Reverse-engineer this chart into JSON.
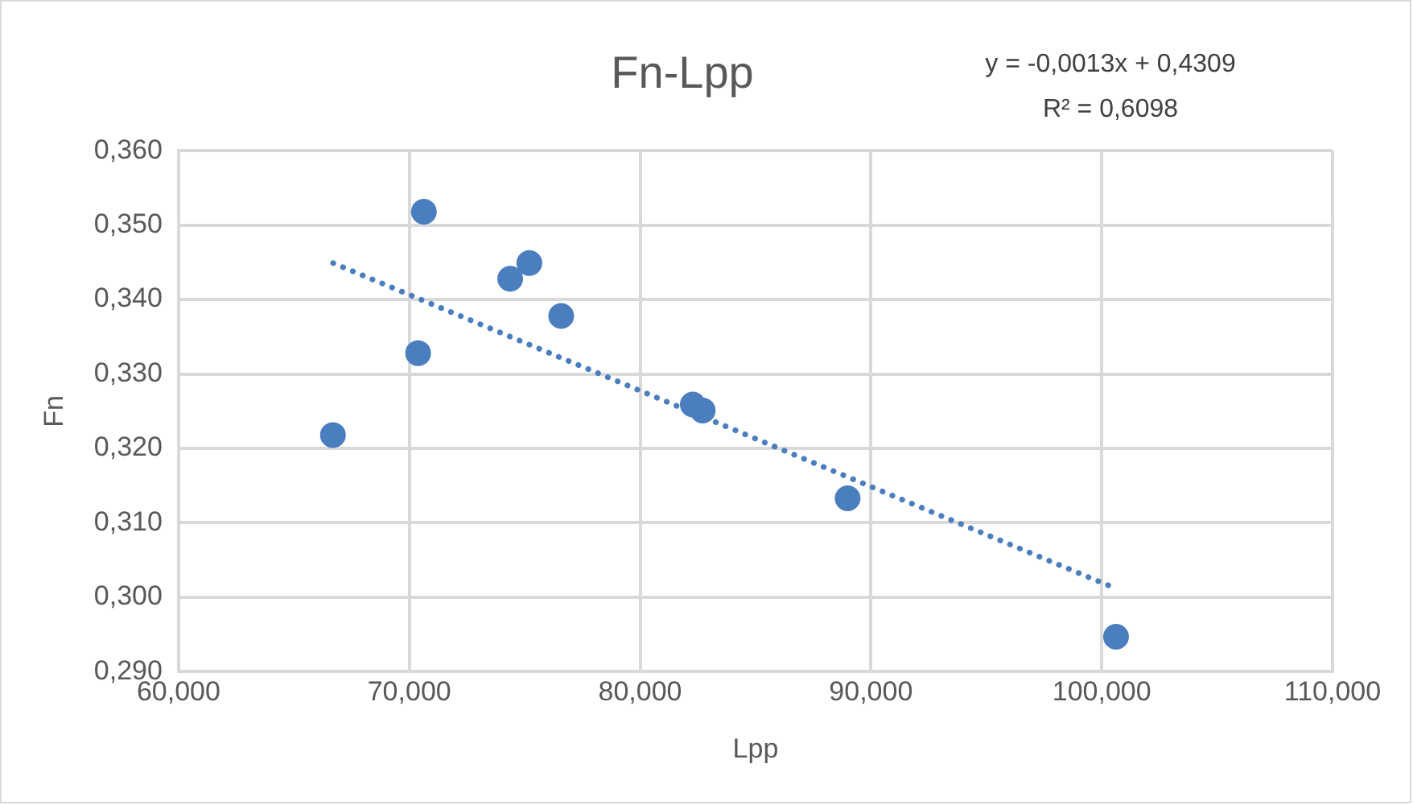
{
  "chart_data": {
    "type": "scatter",
    "title": "Fn-Lpp",
    "xlabel": "Lpp",
    "ylabel": "Fn",
    "annotations": [
      "y = -0,0013x + 0,4309",
      "R² = 0,6098"
    ],
    "xlim": [
      60,
      110
    ],
    "xticks": [
      {
        "value": 60,
        "label": "60,000"
      },
      {
        "value": 70,
        "label": "70,000"
      },
      {
        "value": 80,
        "label": "80,000"
      },
      {
        "value": 90,
        "label": "90,000"
      },
      {
        "value": 100,
        "label": "100,000"
      },
      {
        "value": 110,
        "label": "110,000"
      }
    ],
    "ylim": [
      0.29,
      0.36
    ],
    "yticks": [
      {
        "value": 0.29,
        "label": "0,290"
      },
      {
        "value": 0.3,
        "label": "0,300"
      },
      {
        "value": 0.31,
        "label": "0,310"
      },
      {
        "value": 0.32,
        "label": "0,320"
      },
      {
        "value": 0.33,
        "label": "0,330"
      },
      {
        "value": 0.34,
        "label": "0,340"
      },
      {
        "value": 0.35,
        "label": "0,350"
      },
      {
        "value": 0.36,
        "label": "0,360"
      }
    ],
    "grid": true,
    "series": [
      {
        "marker": "circle",
        "color": "#4a7ebf",
        "x": [
          66.69,
          70.38,
          70.63,
          74.37,
          75.2,
          76.58,
          82.28,
          82.71,
          88.99,
          100.62
        ],
        "values": [
          0.3218,
          0.3328,
          0.3518,
          0.3428,
          0.3449,
          0.3378,
          0.3259,
          0.3251,
          0.3133,
          0.2947
        ]
      },
      {
        "type": "line",
        "marker": "none",
        "color": "#4a7ebf",
        "line_style": "dotted",
        "x": [
          66.7,
          100.6
        ],
        "values": [
          0.3449,
          0.3012
        ]
      }
    ]
  }
}
